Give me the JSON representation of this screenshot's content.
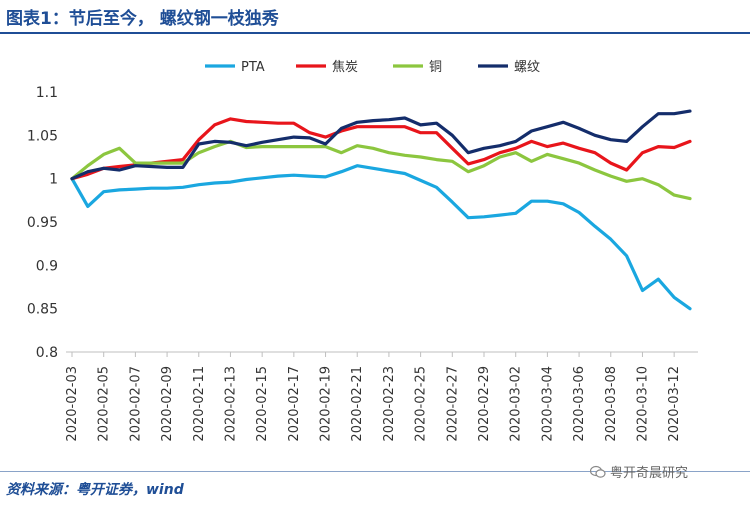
{
  "title": "图表1：节后至今，  螺纹钢一枝独秀",
  "source": "资料来源：粤开证券，wind",
  "watermark": "粤开奇晨研究",
  "chart_data": {
    "type": "line",
    "title": "图表1：节后至今，  螺纹钢一枝独秀",
    "ylim": [
      0.8,
      1.1
    ],
    "yticks": [
      0.8,
      0.85,
      0.9,
      0.95,
      1,
      1.05,
      1.1
    ],
    "ytick_labels": [
      "0.8",
      "0.85",
      "0.9",
      "0.95",
      "1",
      "1.05",
      "1.1"
    ],
    "x": [
      "2020-02-03",
      "2020-02-04",
      "2020-02-05",
      "2020-02-06",
      "2020-02-07",
      "2020-02-08",
      "2020-02-09",
      "2020-02-10",
      "2020-02-11",
      "2020-02-12",
      "2020-02-13",
      "2020-02-14",
      "2020-02-15",
      "2020-02-16",
      "2020-02-17",
      "2020-02-18",
      "2020-02-19",
      "2020-02-20",
      "2020-02-21",
      "2020-02-22",
      "2020-02-23",
      "2020-02-24",
      "2020-02-25",
      "2020-02-26",
      "2020-02-27",
      "2020-02-28",
      "2020-02-29",
      "2020-03-01",
      "2020-03-02",
      "2020-03-03",
      "2020-03-04",
      "2020-03-05",
      "2020-03-06",
      "2020-03-07",
      "2020-03-08",
      "2020-03-09",
      "2020-03-10",
      "2020-03-11",
      "2020-03-12",
      "2020-03-13"
    ],
    "xtick_labels": [
      "2020-02-03",
      "2020-02-05",
      "2020-02-07",
      "2020-02-09",
      "2020-02-11",
      "2020-02-13",
      "2020-02-15",
      "2020-02-17",
      "2020-02-19",
      "2020-02-21",
      "2020-02-23",
      "2020-02-25",
      "2020-02-27",
      "2020-02-29",
      "2020-03-02",
      "2020-03-04",
      "2020-03-06",
      "2020-03-08",
      "2020-03-10",
      "2020-03-12"
    ],
    "legend_position": "top-center",
    "series": [
      {
        "name": "PTA",
        "color": "#1aa7e0",
        "values": [
          1.0,
          0.968,
          0.985,
          0.987,
          0.988,
          0.989,
          0.989,
          0.99,
          0.993,
          0.995,
          0.996,
          0.999,
          1.001,
          1.003,
          1.004,
          1.003,
          1.002,
          1.008,
          1.015,
          1.012,
          1.009,
          1.006,
          0.998,
          0.99,
          0.973,
          0.955,
          0.956,
          0.958,
          0.96,
          0.974,
          0.974,
          0.971,
          0.961,
          0.945,
          0.93,
          0.911,
          0.871,
          0.884,
          0.863,
          0.85
        ]
      },
      {
        "name": "焦炭",
        "color": "#e8151b",
        "values": [
          1.0,
          1.005,
          1.012,
          1.014,
          1.016,
          1.018,
          1.02,
          1.022,
          1.045,
          1.062,
          1.069,
          1.066,
          1.065,
          1.064,
          1.064,
          1.053,
          1.048,
          1.055,
          1.06,
          1.06,
          1.06,
          1.06,
          1.053,
          1.053,
          1.035,
          1.017,
          1.022,
          1.03,
          1.035,
          1.043,
          1.037,
          1.041,
          1.035,
          1.03,
          1.018,
          1.01,
          1.03,
          1.037,
          1.036,
          1.043
        ]
      },
      {
        "name": "铜",
        "color": "#8cc63f",
        "values": [
          1.0,
          1.015,
          1.028,
          1.035,
          1.018,
          1.018,
          1.018,
          1.018,
          1.03,
          1.037,
          1.043,
          1.036,
          1.037,
          1.037,
          1.037,
          1.037,
          1.037,
          1.03,
          1.038,
          1.035,
          1.03,
          1.027,
          1.025,
          1.022,
          1.02,
          1.008,
          1.015,
          1.025,
          1.03,
          1.02,
          1.028,
          1.023,
          1.018,
          1.01,
          1.003,
          0.997,
          1.0,
          0.993,
          0.981,
          0.977
        ]
      },
      {
        "name": "螺纹",
        "color": "#142d6b",
        "values": [
          1.0,
          1.008,
          1.012,
          1.01,
          1.015,
          1.014,
          1.013,
          1.013,
          1.04,
          1.043,
          1.042,
          1.038,
          1.042,
          1.045,
          1.048,
          1.047,
          1.04,
          1.058,
          1.065,
          1.067,
          1.068,
          1.07,
          1.062,
          1.064,
          1.05,
          1.03,
          1.035,
          1.038,
          1.043,
          1.055,
          1.06,
          1.065,
          1.058,
          1.05,
          1.045,
          1.043,
          1.06,
          1.075,
          1.075,
          1.078
        ]
      }
    ]
  }
}
